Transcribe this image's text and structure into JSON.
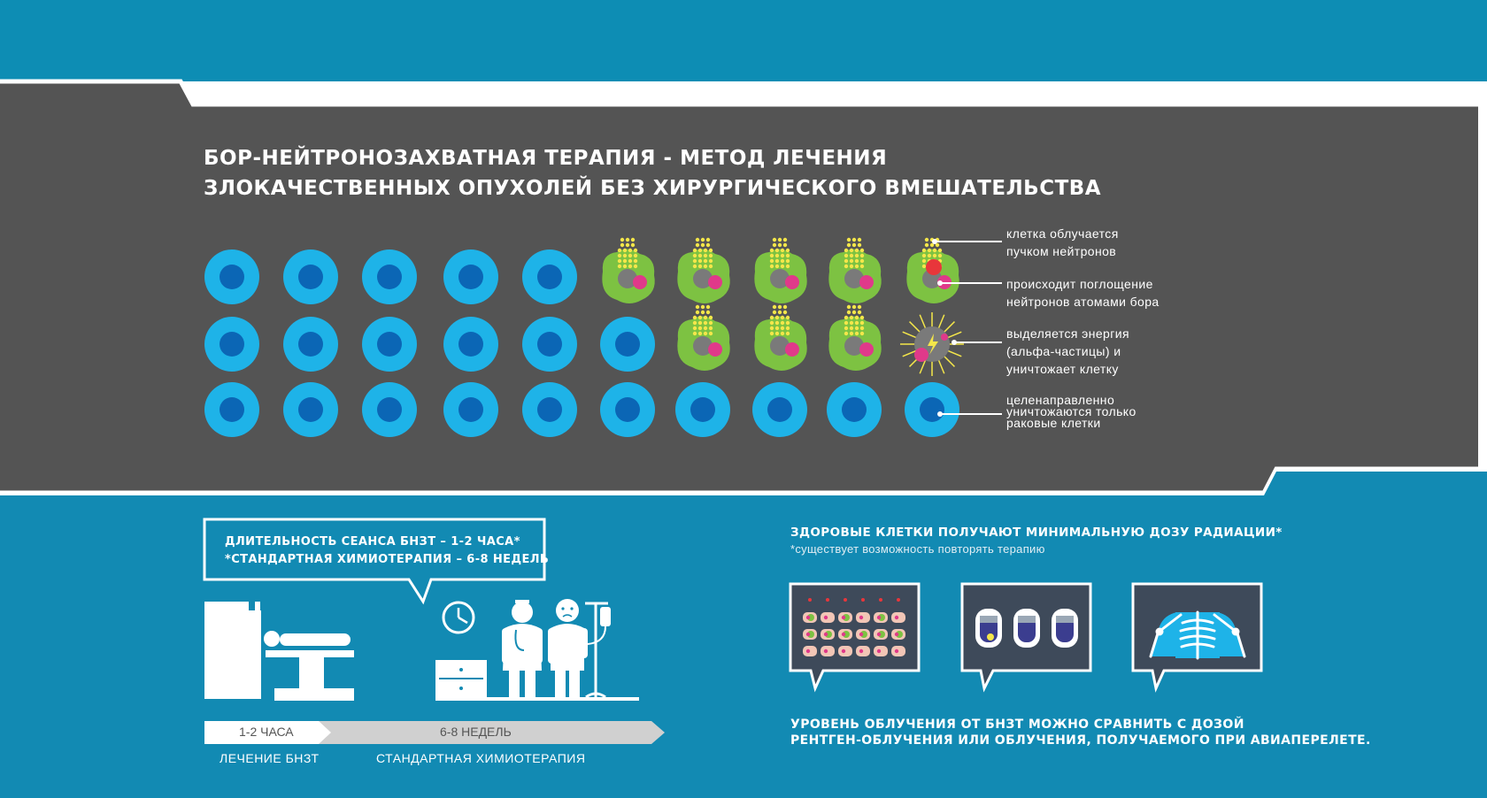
{
  "title": {
    "line1": "БОР-НЕЙТРОНОЗАХВАТНАЯ ТЕРАПИЯ - МЕТОД ЛЕЧЕНИЯ",
    "line2": "ЗЛОКАЧЕСТВЕННЫХ ОПУХОЛЕЙ БЕЗ ХИРУРГИЧЕСКОГО ВМЕШАТЕЛЬСТВА"
  },
  "legend": {
    "step1": [
      "клетка облучается",
      "пучком нейтронов"
    ],
    "step2": [
      "происходит поглощение",
      "нейтронов атомами бора"
    ],
    "step3": [
      "выделяется энергия",
      "(альфа-частицы) и",
      "уничтожает клетку"
    ],
    "step4": [
      "целенаправленно",
      "уничтожаются только",
      "раковые клетки"
    ]
  },
  "colors": {
    "top_band": "#0d8db4",
    "dark_panel": "#545454",
    "bottom_band": "#128ab3",
    "healthy_cell_outer": "#1eb3e8",
    "healthy_cell_nucleus": "#0b66b5",
    "tumor_cell": "#7dc242",
    "boron": "#e0398a",
    "neutron": "#f4e64a"
  },
  "session": {
    "line1": "ДЛИТЕЛЬНОСТЬ СЕАНСА БНЗТ – 1-2 ЧАСА*",
    "line2": "*СТАНДАРТНАЯ ХИМИОТЕРАПИЯ – 6-8 НЕДЕЛЬ"
  },
  "timeline": {
    "bnct_duration": "1-2 ЧАСА",
    "chemo_duration": "6-8 НЕДЕЛЬ",
    "bnct_label": "ЛЕЧЕНИЕ БНЗТ",
    "chemo_label": "СТАНДАРТНАЯ ХИМИОТЕРАПИЯ"
  },
  "radiation": {
    "title": "ЗДОРОВЫЕ КЛЕТКИ ПОЛУЧАЮТ МИНИМАЛЬНУЮ ДОЗУ РАДИАЦИИ*",
    "note": "*существует возможность повторять терапию",
    "comparison_line1": "УРОВЕНЬ ОБЛУЧЕНИЯ ОТ БНЗТ МОЖНО СРАВНИТЬ С ДОЗОЙ",
    "comparison_line2": "РЕНТГЕН-ОБЛУЧЕНИЯ ИЛИ ОБЛУЧЕНИЯ, ПОЛУЧАЕМОГО ПРИ АВИАПЕРЕЛЕТЕ."
  }
}
